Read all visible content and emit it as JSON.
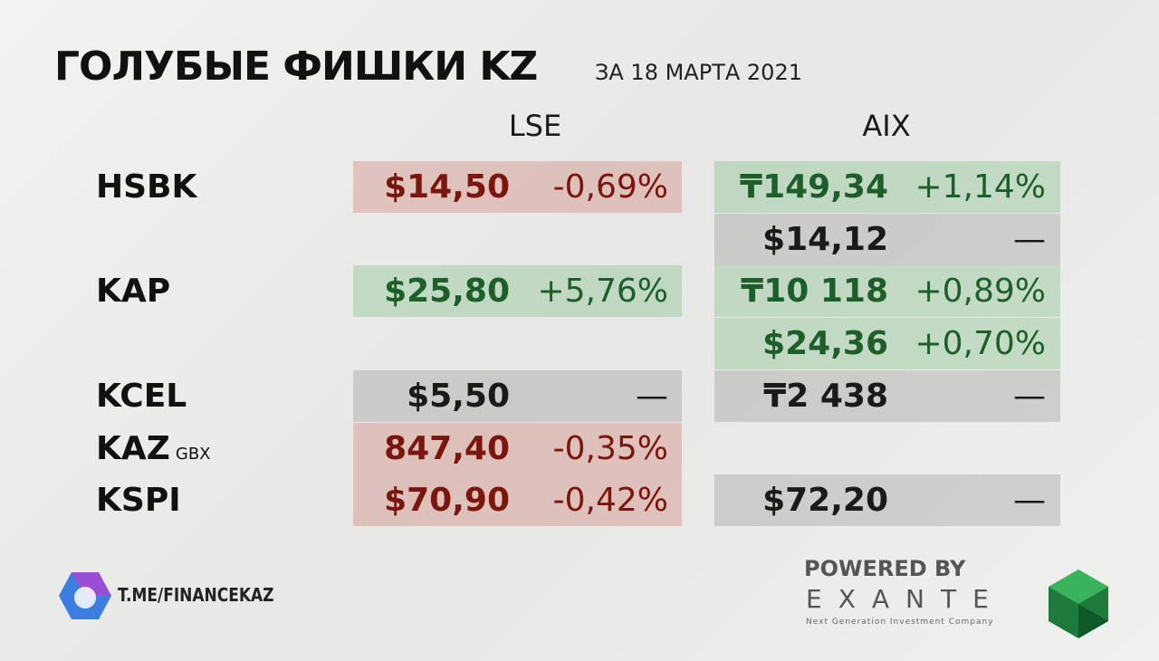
{
  "header": {
    "title": "ГОЛУБЫЕ ФИШКИ KZ",
    "subtitle": "ЗА 18 МАРТА 2021"
  },
  "columns": [
    "LSE",
    "AIX"
  ],
  "rows": [
    {
      "ticker": "HSBK",
      "lse": [
        {
          "price": "$14,50",
          "change": "-0,69%",
          "color": "#7a160e",
          "background": "rgba(205,120,110,0.35)"
        }
      ],
      "aix": [
        {
          "price": "₸149,34",
          "change": "+1,14%",
          "color": "#1d5e2a",
          "background": "rgba(120,190,130,0.35)"
        },
        {
          "price": "$14,12",
          "change": "—",
          "color": "#1a1a1a",
          "background": "rgba(150,150,150,0.35)"
        }
      ]
    },
    {
      "ticker": "KAP",
      "lse": [
        {
          "price": "$25,80",
          "change": "+5,76%",
          "color": "#1d5e2a",
          "background": "rgba(120,190,130,0.35)"
        }
      ],
      "aix": [
        {
          "price": "₸10 118",
          "change": "+0,89%",
          "color": "#1d5e2a",
          "background": "rgba(120,190,130,0.35)"
        },
        {
          "price": "$24,36",
          "change": "+0,70%",
          "color": "#1d5e2a",
          "background": "rgba(120,190,130,0.35)"
        }
      ]
    },
    {
      "ticker": "KCEL",
      "lse": [
        {
          "price": "$5,50",
          "change": "—",
          "color": "#1a1a1a",
          "background": "rgba(150,150,150,0.35)"
        }
      ],
      "aix": [
        {
          "price": "₸2 438",
          "change": "—",
          "color": "#1a1a1a",
          "background": "rgba(150,150,150,0.35)"
        }
      ]
    },
    {
      "ticker": "KAZ",
      "note": "GBX",
      "lse": [
        {
          "price": "847,40",
          "change": "-0,35%",
          "color": "#7a160e",
          "background": "rgba(205,120,110,0.35)"
        }
      ],
      "aix": []
    },
    {
      "ticker": "KSPI",
      "lse": [
        {
          "price": "$70,90",
          "change": "-0,42%",
          "color": "#7a160e",
          "background": "rgba(205,120,110,0.35)"
        }
      ],
      "aix": [
        {
          "price": "$72,20",
          "change": "—",
          "color": "#1a1a1a",
          "background": "rgba(150,150,150,0.35)"
        }
      ]
    }
  ],
  "footer": {
    "channel": "T.ME/FINANCEKAZ",
    "powered": "POWERED BY",
    "brand": "EXANTE",
    "tagline": "Next Generation Investment Company"
  }
}
